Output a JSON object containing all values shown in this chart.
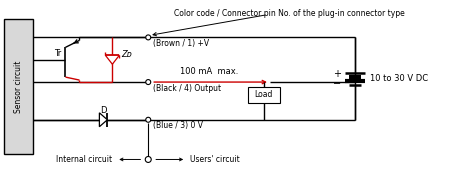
{
  "title_text": "Color code / Connector pin No. of the plug-in connector type",
  "sensor_label": "Sensor circuit",
  "internal_circuit_label": "Internal circuit",
  "users_circuit_label": "Users' circuit",
  "brown_label": "(Brown / 1) +V",
  "black_label": "(Black / 4) Output",
  "blue_label": "(Blue / 3) 0 V",
  "current_label": "100 mA  max.",
  "voltage_label": "10 to 30 V DC",
  "tr_label": "Tr",
  "zd_label": "Zᴅ",
  "d_label": "D",
  "load_label": "Load",
  "plus_label": "+",
  "minus_label": "−",
  "bg_color": "#ffffff",
  "line_color": "#000000",
  "red_color": "#cc0000",
  "gray_color": "#d8d8d8"
}
